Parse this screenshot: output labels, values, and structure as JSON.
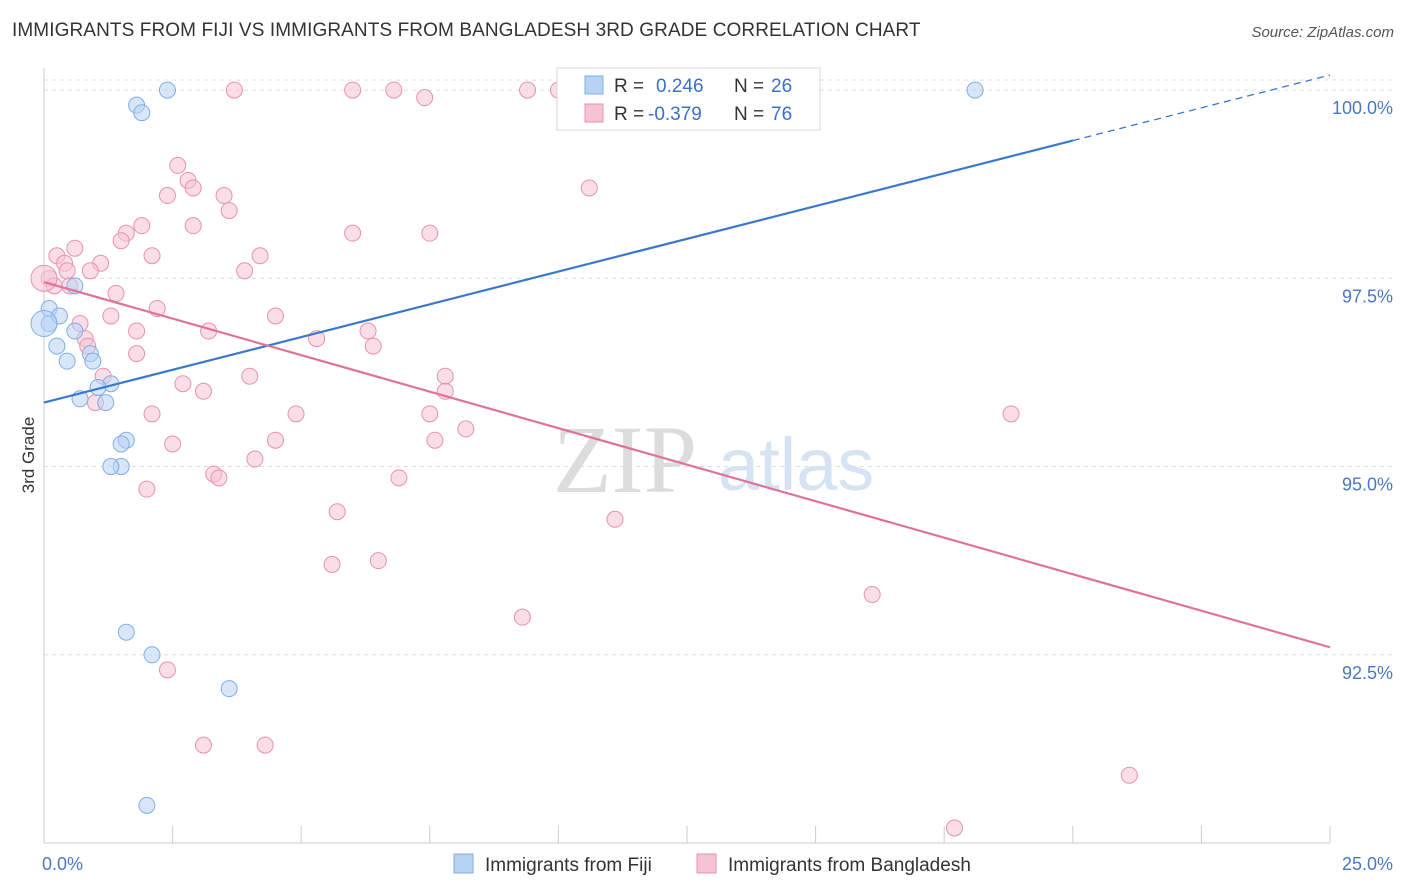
{
  "header": {
    "title": "IMMIGRANTS FROM FIJI VS IMMIGRANTS FROM BANGLADESH 3RD GRADE CORRELATION CHART",
    "source": "Source: ZipAtlas.com"
  },
  "watermark": {
    "zip": "ZIP",
    "atlas": "atlas"
  },
  "chart_data": {
    "type": "scatter",
    "title": "IMMIGRANTS FROM FIJI VS IMMIGRANTS FROM BANGLADESH 3RD GRADE CORRELATION CHART",
    "xlabel": "",
    "ylabel": "3rd Grade",
    "xlim": [
      0,
      25
    ],
    "ylim": [
      90,
      100.4
    ],
    "x_tick_labels": [
      "0.0%",
      "25.0%"
    ],
    "y_ticks": [
      92.5,
      95.0,
      97.5,
      100.0
    ],
    "y_tick_labels": [
      "92.5%",
      "95.0%",
      "97.5%",
      "100.0%"
    ],
    "grid": true,
    "legend_position": "top-center",
    "legend": {
      "fiji": {
        "r_label": "R =",
        "r_value": "0.246",
        "n_label": "N =",
        "n_value": "26"
      },
      "bangladesh": {
        "r_label": "R =",
        "r_value": "-0.379",
        "n_label": "N =",
        "n_value": "76"
      }
    },
    "series": [
      {
        "name": "Immigrants from Fiji",
        "color": "#7eaee8",
        "fill": "#b8d2f3",
        "points": [
          [
            2.4,
            100.0
          ],
          [
            1.8,
            99.8
          ],
          [
            1.9,
            99.7
          ],
          [
            18.1,
            100.0
          ],
          [
            0.1,
            96.9
          ],
          [
            0.1,
            97.1
          ],
          [
            0.3,
            97.0
          ],
          [
            0.6,
            97.4
          ],
          [
            0.25,
            96.6
          ],
          [
            0.45,
            96.4
          ],
          [
            0.6,
            96.8
          ],
          [
            0.9,
            96.5
          ],
          [
            0.95,
            96.4
          ],
          [
            1.3,
            96.1
          ],
          [
            1.05,
            96.05
          ],
          [
            0.7,
            95.9
          ],
          [
            1.2,
            95.85
          ],
          [
            1.6,
            95.35
          ],
          [
            1.5,
            95.3
          ],
          [
            1.5,
            95.0
          ],
          [
            1.3,
            95.0
          ],
          [
            1.6,
            92.8
          ],
          [
            2.1,
            92.5
          ],
          [
            3.6,
            92.05
          ],
          [
            2.0,
            90.5
          ],
          [
            0.0,
            96.9
          ]
        ],
        "trend": {
          "x": [
            0,
            25
          ],
          "y": [
            95.85,
            100.2
          ],
          "solid_until_x": 20.0,
          "color": "#3a78d0"
        }
      },
      {
        "name": "Immigrants from Bangladesh",
        "color": "#e891ae",
        "fill": "#f6c3d4",
        "points": [
          [
            3.7,
            100.0
          ],
          [
            6.0,
            100.0
          ],
          [
            6.8,
            100.0
          ],
          [
            7.4,
            99.9
          ],
          [
            9.4,
            100.0
          ],
          [
            10.0,
            100.0
          ],
          [
            2.6,
            99.0
          ],
          [
            2.8,
            98.8
          ],
          [
            2.9,
            98.7
          ],
          [
            2.4,
            98.6
          ],
          [
            3.5,
            98.6
          ],
          [
            3.6,
            98.4
          ],
          [
            2.9,
            98.2
          ],
          [
            1.9,
            98.2
          ],
          [
            1.6,
            98.1
          ],
          [
            1.5,
            98.0
          ],
          [
            6.0,
            98.1
          ],
          [
            7.5,
            98.1
          ],
          [
            10.6,
            98.7
          ],
          [
            4.2,
            97.8
          ],
          [
            2.1,
            97.8
          ],
          [
            1.1,
            97.7
          ],
          [
            0.6,
            97.9
          ],
          [
            0.25,
            97.8
          ],
          [
            0.4,
            97.7
          ],
          [
            0.45,
            97.6
          ],
          [
            0.9,
            97.6
          ],
          [
            3.9,
            97.6
          ],
          [
            0.1,
            97.5
          ],
          [
            0.2,
            97.4
          ],
          [
            0.5,
            97.4
          ],
          [
            1.4,
            97.3
          ],
          [
            2.2,
            97.1
          ],
          [
            4.5,
            97.0
          ],
          [
            1.3,
            97.0
          ],
          [
            0.7,
            96.9
          ],
          [
            1.8,
            96.8
          ],
          [
            3.2,
            96.8
          ],
          [
            5.3,
            96.7
          ],
          [
            6.3,
            96.8
          ],
          [
            0.8,
            96.7
          ],
          [
            0.85,
            96.6
          ],
          [
            6.4,
            96.6
          ],
          [
            1.8,
            96.5
          ],
          [
            1.15,
            96.2
          ],
          [
            4.0,
            96.2
          ],
          [
            7.8,
            96.2
          ],
          [
            2.7,
            96.1
          ],
          [
            7.8,
            96.0
          ],
          [
            3.1,
            96.0
          ],
          [
            1.0,
            95.85
          ],
          [
            2.1,
            95.7
          ],
          [
            4.9,
            95.7
          ],
          [
            7.5,
            95.7
          ],
          [
            8.2,
            95.5
          ],
          [
            18.8,
            95.7
          ],
          [
            2.5,
            95.3
          ],
          [
            4.5,
            95.35
          ],
          [
            7.6,
            95.35
          ],
          [
            4.1,
            95.1
          ],
          [
            3.3,
            94.9
          ],
          [
            3.4,
            94.85
          ],
          [
            6.9,
            94.85
          ],
          [
            2.0,
            94.7
          ],
          [
            5.7,
            94.4
          ],
          [
            11.1,
            94.3
          ],
          [
            6.5,
            93.75
          ],
          [
            5.6,
            93.7
          ],
          [
            9.3,
            93.0
          ],
          [
            16.1,
            93.3
          ],
          [
            2.4,
            92.3
          ],
          [
            3.1,
            91.3
          ],
          [
            4.3,
            91.3
          ],
          [
            21.1,
            90.9
          ],
          [
            17.7,
            90.2
          ],
          [
            0.0,
            97.5
          ]
        ],
        "trend": {
          "x": [
            0,
            25
          ],
          "y": [
            97.45,
            92.6
          ],
          "color": "#e07298"
        }
      }
    ]
  }
}
